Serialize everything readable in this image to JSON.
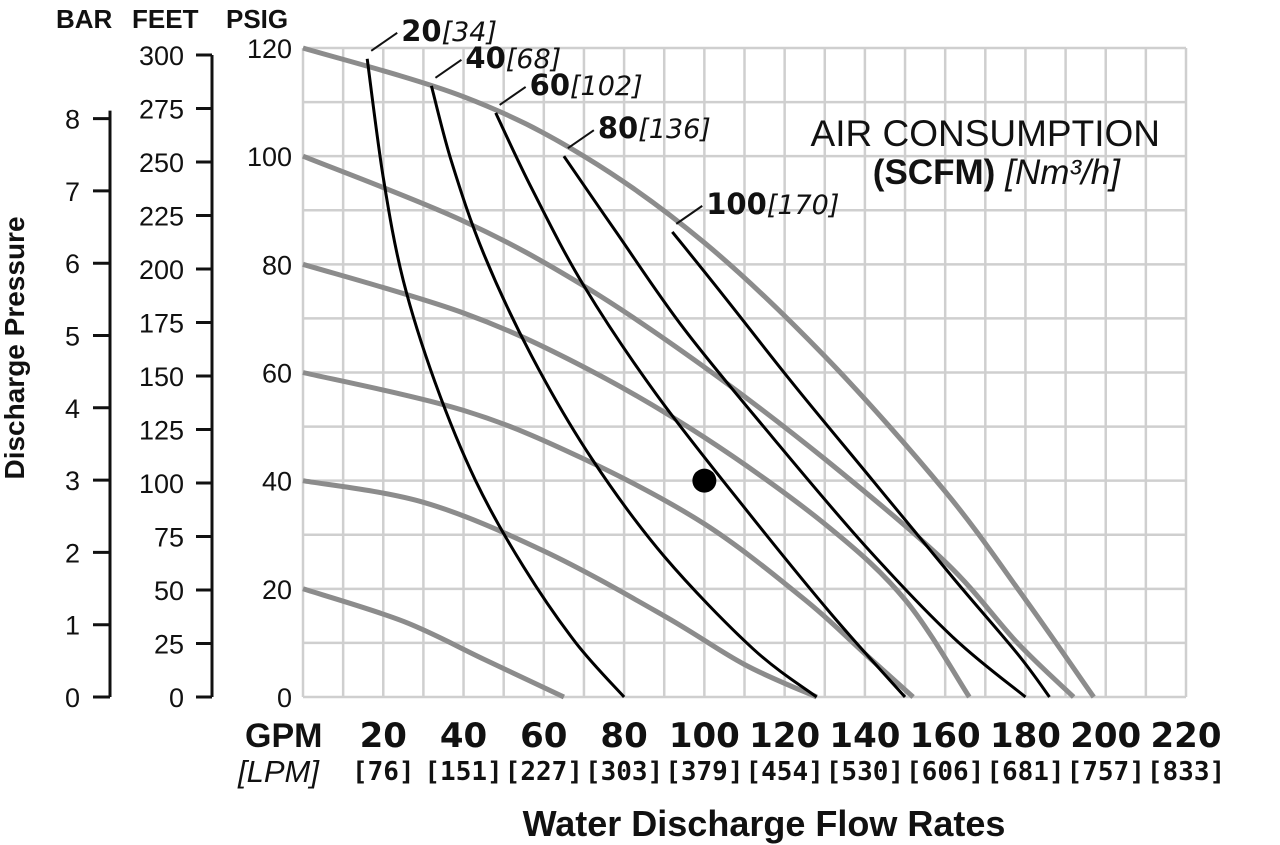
{
  "chart_data": {
    "type": "line",
    "title": "",
    "xlabel": "Water Discharge Flow Rates",
    "ylabel": "Discharge Pressure",
    "x_unit": "GPM",
    "x_unit_alt": "[LPM]",
    "xlim": [
      0,
      220
    ],
    "x_ticks": [
      20,
      40,
      60,
      80,
      100,
      120,
      140,
      160,
      180,
      200,
      220
    ],
    "x_tick_lpm": [
      "[76]",
      "[151]",
      "[227]",
      "[303]",
      "[379]",
      "[454]",
      "[530]",
      "[606]",
      "[681]",
      "[757]",
      "[833]"
    ],
    "ylim_psig": [
      0,
      120
    ],
    "psig_header": "PSIG",
    "psig_ticks": [
      0,
      20,
      40,
      60,
      80,
      100,
      120
    ],
    "feet_header": "FEET",
    "feet_ticks": [
      0,
      25,
      50,
      75,
      100,
      125,
      150,
      175,
      200,
      225,
      250,
      275,
      300
    ],
    "bar_header": "BAR",
    "bar_ticks": [
      0,
      1,
      2,
      3,
      4,
      5,
      6,
      7,
      8
    ],
    "grid": true,
    "grid_x_step": 10,
    "grid_y_step": 10,
    "legend_title_line1": "AIR CONSUMPTION",
    "legend_title_bold": "(SCFM)",
    "legend_title_italic": "[Nm³/h]",
    "legend_position": "top-right",
    "curve_color": "#000000",
    "performance_color": "#8c8c8c",
    "performance_curves": [
      {
        "x": [
          0,
          40,
          70,
          100,
          130,
          160,
          180,
          197
        ],
        "y": [
          120,
          111,
          100,
          84,
          63,
          38,
          18,
          0
        ]
      },
      {
        "x": [
          0,
          40,
          70,
          100,
          130,
          160,
          178,
          192
        ],
        "y": [
          100,
          88,
          76,
          61,
          44,
          25,
          10,
          0
        ]
      },
      {
        "x": [
          0,
          40,
          70,
          100,
          130,
          150,
          166
        ],
        "y": [
          80,
          71,
          61,
          48,
          32,
          18,
          0
        ]
      },
      {
        "x": [
          0,
          40,
          70,
          100,
          125,
          140,
          152
        ],
        "y": [
          60,
          53,
          44,
          32,
          18,
          8,
          0
        ]
      },
      {
        "x": [
          0,
          30,
          60,
          90,
          110,
          128
        ],
        "y": [
          40,
          36,
          27,
          15,
          6,
          0
        ]
      },
      {
        "x": [
          0,
          25,
          45,
          65
        ],
        "y": [
          20,
          14,
          7,
          0
        ]
      }
    ],
    "series": [
      {
        "name": "20",
        "label_alt": "[34]",
        "x": [
          16,
          20,
          25,
          33,
          43,
          55,
          68,
          80
        ],
        "y": [
          118,
          96,
          77,
          58,
          40,
          24,
          10,
          0
        ]
      },
      {
        "name": "40",
        "label_alt": "[68]",
        "x": [
          32,
          37,
          45,
          57,
          72,
          90,
          112,
          128
        ],
        "y": [
          113,
          99,
          82,
          63,
          44,
          26,
          9,
          0
        ]
      },
      {
        "name": "60",
        "label_alt": "[102]",
        "x": [
          48,
          57,
          70,
          88,
          110,
          132,
          150
        ],
        "y": [
          108,
          94,
          76,
          56,
          35,
          15,
          0
        ]
      },
      {
        "name": "80",
        "label_alt": "[136]",
        "x": [
          65,
          78,
          95,
          117,
          140,
          162,
          180
        ],
        "y": [
          100,
          86,
          68,
          48,
          28,
          11,
          0
        ]
      },
      {
        "name": "100",
        "label_alt": "[170]",
        "x": [
          92,
          105,
          122,
          142,
          162,
          178,
          186
        ],
        "y": [
          86,
          74,
          58,
          40,
          22,
          8,
          0
        ]
      }
    ],
    "operating_point": {
      "x": 100,
      "y": 40
    }
  }
}
